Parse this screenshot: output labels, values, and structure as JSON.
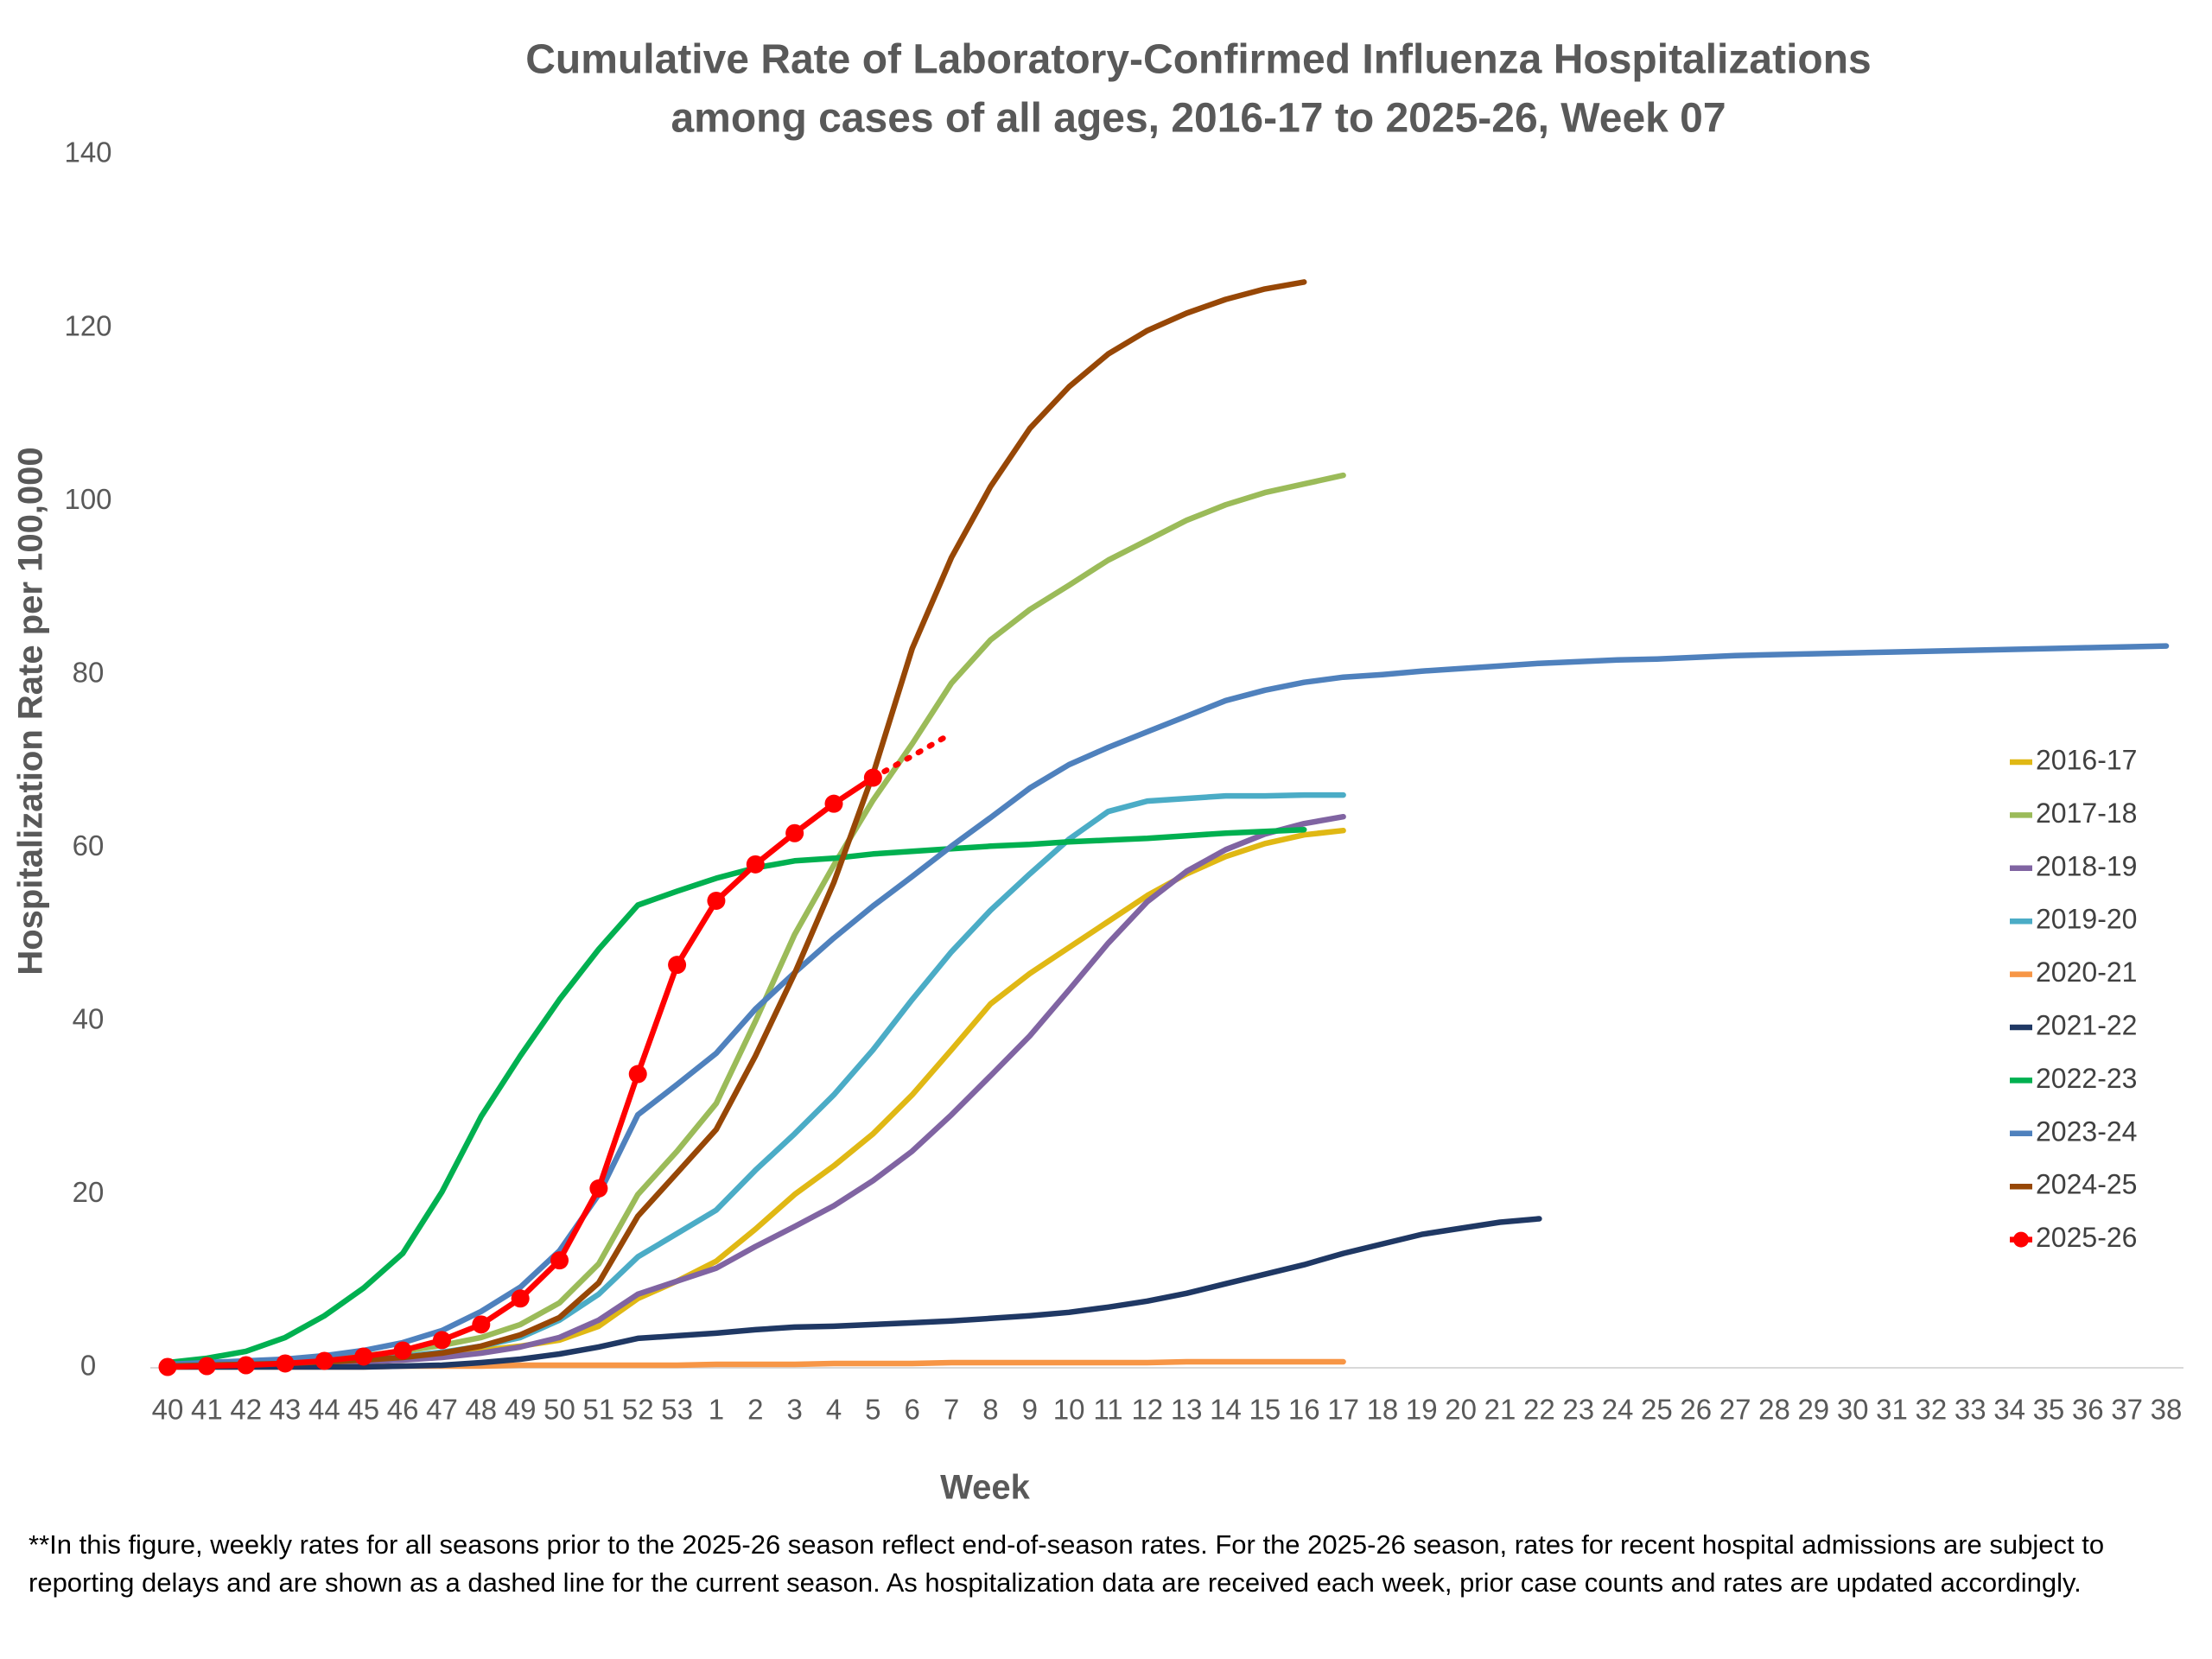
{
  "chart_data": {
    "type": "line",
    "title": [
      "Cumulative Rate of Laboratory-Confirmed Influenza Hospitalizations",
      "among cases of all ages, 2016-17 to 2025-26, Week 07"
    ],
    "x_label": "Week",
    "y_label": "Hospitalization Rate per 100,000",
    "note": "**In this figure, weekly rates for all seasons prior to the 2025-26 season reflect end-of-season rates. For the 2025-26 season, rates for recent hospital admissions are subject to reporting delays and are shown as a dashed line for the current season. As hospitalization data are received each week, prior case counts and rates are updated accordingly.",
    "categories": [
      "40",
      "41",
      "42",
      "43",
      "44",
      "45",
      "46",
      "47",
      "48",
      "49",
      "50",
      "51",
      "52",
      "53",
      "1",
      "2",
      "3",
      "4",
      "5",
      "6",
      "7",
      "8",
      "9",
      "10",
      "11",
      "12",
      "13",
      "14",
      "15",
      "16",
      "17",
      "18",
      "19",
      "20",
      "21",
      "22",
      "23",
      "24",
      "25",
      "26",
      "27",
      "28",
      "29",
      "30",
      "31",
      "32",
      "33",
      "34",
      "35",
      "36",
      "37",
      "38"
    ],
    "ylim": [
      0,
      140
    ],
    "yticks": [
      0,
      20,
      40,
      60,
      80,
      100,
      120,
      140
    ],
    "grid": false,
    "legend": "right",
    "series": [
      {
        "name": "2016-17",
        "color": "#e0b814",
        "values": [
          0.3,
          0.4,
          0.5,
          0.6,
          0.8,
          1.0,
          1.2,
          1.5,
          2.0,
          2.5,
          3.2,
          4.8,
          8,
          10,
          12.3,
          16,
          20,
          23.3,
          27,
          31.5,
          36.7,
          42,
          45.5,
          48.5,
          51.5,
          54.5,
          57,
          59,
          60.5,
          61.5,
          62,
          null,
          null,
          null,
          null,
          null,
          null,
          null,
          null,
          null,
          null,
          null,
          null,
          null,
          null,
          null,
          null,
          null,
          null,
          null,
          null,
          null
        ]
      },
      {
        "name": "2017-18",
        "color": "#9bbb59",
        "values": [
          0.3,
          0.5,
          0.7,
          0.9,
          1.1,
          1.4,
          1.9,
          2.6,
          3.5,
          5,
          7.5,
          12,
          20,
          25,
          30.5,
          40,
          50,
          58,
          65.5,
          72,
          79,
          84,
          87.5,
          90.3,
          93.2,
          95.5,
          97.8,
          99.6,
          101,
          102,
          103,
          null,
          null,
          null,
          null,
          null,
          null,
          null,
          null,
          null,
          null,
          null,
          null,
          null,
          null,
          null,
          null,
          null,
          null,
          null,
          null,
          null
        ]
      },
      {
        "name": "2018-19",
        "color": "#8064a2",
        "values": [
          0.2,
          0.3,
          0.4,
          0.5,
          0.6,
          0.7,
          0.9,
          1.2,
          1.7,
          2.4,
          3.5,
          5.5,
          8.5,
          10,
          11.5,
          14,
          16.3,
          18.7,
          21.6,
          25,
          29.2,
          33.7,
          38.3,
          43.6,
          49,
          53.8,
          57.3,
          59.8,
          61.6,
          62.8,
          63.6,
          null,
          null,
          null,
          null,
          null,
          null,
          null,
          null,
          null,
          null,
          null,
          null,
          null,
          null,
          null,
          null,
          null,
          null,
          null,
          null,
          null
        ]
      },
      {
        "name": "2019-20",
        "color": "#4bacc6",
        "values": [
          0.3,
          0.4,
          0.5,
          0.6,
          0.8,
          1,
          1.3,
          1.8,
          2.5,
          3.5,
          5.5,
          8.5,
          12.8,
          15.5,
          18.2,
          22.8,
          27,
          31.5,
          36.7,
          42.5,
          48,
          52.8,
          57,
          61,
          64.2,
          65.4,
          65.7,
          66,
          66,
          66.1,
          66.1,
          null,
          null,
          null,
          null,
          null,
          null,
          null,
          null,
          null,
          null,
          null,
          null,
          null,
          null,
          null,
          null,
          null,
          null,
          null,
          null,
          null
        ]
      },
      {
        "name": "2020-21",
        "color": "#f79646",
        "values": [
          0.1,
          0.1,
          0.1,
          0.1,
          0.1,
          0.1,
          0.2,
          0.2,
          0.2,
          0.3,
          0.3,
          0.3,
          0.3,
          0.3,
          0.4,
          0.4,
          0.4,
          0.5,
          0.5,
          0.5,
          0.6,
          0.6,
          0.6,
          0.6,
          0.6,
          0.6,
          0.7,
          0.7,
          0.7,
          0.7,
          0.7,
          null,
          null,
          null,
          null,
          null,
          null,
          null,
          null,
          null,
          null,
          null,
          null,
          null,
          null,
          null,
          null,
          null,
          null,
          null,
          null,
          null
        ]
      },
      {
        "name": "2021-22",
        "color": "#1f3864",
        "values": [
          0.1,
          0.1,
          0.1,
          0.1,
          0.1,
          0.1,
          0.2,
          0.3,
          0.6,
          1,
          1.6,
          2.4,
          3.4,
          3.7,
          4,
          4.4,
          4.7,
          4.8,
          5,
          5.2,
          5.4,
          5.7,
          6,
          6.4,
          7,
          7.7,
          8.6,
          9.7,
          10.8,
          11.9,
          13.2,
          14.3,
          15.4,
          16.1,
          16.8,
          17.2,
          null,
          null,
          null,
          null,
          null,
          null,
          null,
          null,
          null,
          null,
          null,
          null,
          null,
          null,
          null,
          null
        ]
      },
      {
        "name": "2022-23",
        "color": "#00b050",
        "values": [
          0.6,
          1.1,
          1.9,
          3.5,
          6,
          9.2,
          13.2,
          20.3,
          29,
          36,
          42.5,
          48.3,
          53.4,
          55,
          56.5,
          57.7,
          58.5,
          58.8,
          59.3,
          59.6,
          59.9,
          60.2,
          60.4,
          60.7,
          60.9,
          61.1,
          61.4,
          61.7,
          61.9,
          62.1,
          null,
          null,
          null,
          null,
          null,
          null,
          null,
          null,
          null,
          null,
          null,
          null,
          null,
          null,
          null,
          null,
          null,
          null,
          null,
          null,
          null,
          null
        ]
      },
      {
        "name": "2023-24",
        "color": "#4f81bd",
        "values": [
          0.4,
          0.6,
          0.8,
          1,
          1.4,
          2,
          2.9,
          4.3,
          6.5,
          9.3,
          13.5,
          20,
          29.2,
          32.7,
          36.3,
          41.4,
          45.6,
          49.6,
          53.3,
          56.7,
          60.2,
          63.5,
          66.9,
          69.6,
          71.6,
          73.4,
          75.2,
          77,
          78.2,
          79.1,
          79.7,
          80,
          80.4,
          80.7,
          81,
          81.3,
          81.5,
          81.7,
          81.8,
          82,
          82.2,
          82.3,
          82.4,
          82.5,
          82.6,
          82.7,
          82.8,
          82.9,
          83,
          83.1,
          83.2,
          83.3
        ]
      },
      {
        "name": "2024-25",
        "color": "#974706",
        "values": [
          0.2,
          0.3,
          0.4,
          0.5,
          0.7,
          0.9,
          1.2,
          1.7,
          2.5,
          3.8,
          5.8,
          9.8,
          17.5,
          22.5,
          27.5,
          36,
          45.5,
          56,
          68.5,
          83,
          93.5,
          101.7,
          108.4,
          113.2,
          117,
          119.7,
          121.7,
          123.3,
          124.5,
          125.3,
          null,
          null,
          null,
          null,
          null,
          null,
          null,
          null,
          null,
          null,
          null,
          null,
          null,
          null,
          null,
          null,
          null,
          null,
          null,
          null,
          null,
          null
        ]
      },
      {
        "name": "2025-26",
        "color": "#ff0000",
        "markers": true,
        "values": [
          0.1,
          0.2,
          0.3,
          0.5,
          0.8,
          1.3,
          2,
          3.2,
          5,
          8,
          12.4,
          20.7,
          33.9,
          46.5,
          53.9,
          58.1,
          61.7,
          65.1,
          68.1,
          null,
          null,
          null,
          null,
          null,
          null,
          null,
          null,
          null,
          null,
          null,
          null,
          null,
          null,
          null,
          null,
          null,
          null,
          null,
          null,
          null,
          null,
          null,
          null,
          null,
          null,
          null,
          null,
          null,
          null,
          null,
          null,
          null
        ],
        "dashed_values": [
          null,
          null,
          null,
          null,
          null,
          null,
          null,
          null,
          null,
          null,
          null,
          null,
          null,
          null,
          null,
          null,
          null,
          null,
          null,
          70.6,
          73.2,
          null,
          null,
          null,
          null,
          null,
          null,
          null,
          null,
          null,
          null,
          null,
          null,
          null,
          null,
          null,
          null,
          null,
          null,
          null,
          null,
          null,
          null,
          null,
          null,
          null,
          null,
          null,
          null,
          null,
          null,
          null
        ]
      }
    ]
  }
}
